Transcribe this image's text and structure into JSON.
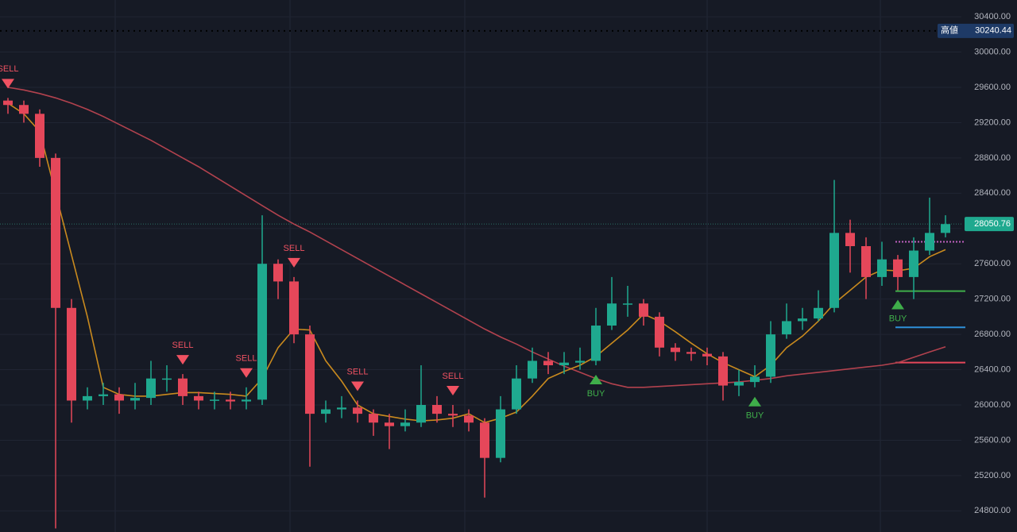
{
  "chart_data": {
    "type": "candlestick",
    "ylim": [
      24560,
      30590
    ],
    "yticks": [
      {
        "value": 30400,
        "label": "30400.00"
      },
      {
        "value": 30000,
        "label": "30000.00"
      },
      {
        "value": 29600,
        "label": "29600.00"
      },
      {
        "value": 29200,
        "label": "29200.00"
      },
      {
        "value": 28800,
        "label": "28800.00"
      },
      {
        "value": 28400,
        "label": "28400.00"
      },
      {
        "value": 28000,
        "label": "28000.00"
      },
      {
        "value": 27600,
        "label": "27600.00"
      },
      {
        "value": 27200,
        "label": "27200.00"
      },
      {
        "value": 26800,
        "label": "26800.00"
      },
      {
        "value": 26400,
        "label": "26400.00"
      },
      {
        "value": 26000,
        "label": "26000.00"
      },
      {
        "value": 25600,
        "label": "25600.00"
      },
      {
        "value": 25200,
        "label": "25200.00"
      },
      {
        "value": 24800,
        "label": "24800.00"
      }
    ],
    "grid": true,
    "up_color": "#1fa98f",
    "down_color": "#e5475a",
    "open": [
      29450,
      29400,
      29300,
      28800,
      27100,
      26050,
      26100,
      26120,
      26050,
      26080,
      26300,
      26300,
      26100,
      26050,
      26060,
      26040,
      26060,
      27600,
      27400,
      26800,
      25900,
      25950,
      25970,
      25900,
      25800,
      25760,
      25800,
      26000,
      25900,
      25880,
      25800,
      25400,
      25950,
      26300,
      26500,
      26450,
      26480,
      26500,
      26900,
      27150,
      27150,
      27000,
      26650,
      26600,
      26580,
      26550,
      26220,
      26260,
      26320,
      26800,
      26950,
      26980,
      27100,
      27950,
      27800,
      27450,
      27650,
      27450,
      27750,
      27950
    ],
    "high": [
      29480,
      29450,
      29350,
      28850,
      27200,
      26200,
      26250,
      26200,
      26250,
      26500,
      26450,
      26350,
      26150,
      26150,
      26150,
      26200,
      28150,
      27650,
      27450,
      26900,
      26050,
      26100,
      26050,
      25950,
      25900,
      25950,
      26450,
      26100,
      26000,
      25950,
      25850,
      26100,
      26450,
      26650,
      26600,
      26600,
      26650,
      27100,
      27450,
      27350,
      27200,
      27050,
      26700,
      26650,
      26650,
      26600,
      26400,
      26450,
      26950,
      27150,
      27100,
      27300,
      28550,
      28100,
      27900,
      27850,
      27700,
      27900,
      28350,
      28150
    ],
    "low": [
      29300,
      29200,
      28700,
      24600,
      25800,
      25950,
      26000,
      25900,
      25950,
      26000,
      26150,
      26000,
      25950,
      25950,
      25950,
      25950,
      26000,
      27200,
      26700,
      25300,
      25800,
      25850,
      25800,
      25650,
      25500,
      25700,
      25750,
      25800,
      25750,
      25700,
      24950,
      25350,
      25900,
      26250,
      26350,
      26350,
      26400,
      26450,
      26850,
      27000,
      26900,
      26550,
      26500,
      26500,
      26450,
      26050,
      26100,
      26200,
      26250,
      26750,
      26850,
      26950,
      27050,
      27500,
      27200,
      27350,
      27300,
      27200,
      27700,
      27900
    ],
    "close": [
      29400,
      29300,
      28800,
      27100,
      26050,
      26100,
      26120,
      26050,
      26080,
      26300,
      26300,
      26100,
      26050,
      26060,
      26040,
      26060,
      27600,
      27400,
      26800,
      25900,
      25950,
      25970,
      25900,
      25800,
      25760,
      25800,
      26000,
      25900,
      25880,
      25800,
      25400,
      25950,
      26300,
      26500,
      26450,
      26480,
      26500,
      26900,
      27150,
      27150,
      27000,
      26650,
      26600,
      26580,
      26550,
      26220,
      26260,
      26320,
      26800,
      26950,
      26980,
      27100,
      27950,
      27800,
      27450,
      27650,
      27450,
      27750,
      27950,
      28050
    ],
    "series": [
      {
        "color": "#b2424e",
        "values": [
          29600,
          29570,
          29530,
          29480,
          29420,
          29350,
          29270,
          29180,
          29090,
          29000,
          28900,
          28800,
          28700,
          28590,
          28480,
          28370,
          28260,
          28150,
          28050,
          27960,
          27860,
          27760,
          27660,
          27560,
          27460,
          27360,
          27260,
          27160,
          27060,
          26960,
          26860,
          26770,
          26690,
          26600,
          26520,
          26440,
          26370,
          26300,
          26240,
          26200,
          26200,
          26210,
          26220,
          26230,
          26240,
          26250,
          26260,
          26280,
          26300,
          26330,
          26350,
          26370,
          26390,
          26410,
          26430,
          26450,
          26480,
          26540,
          26600,
          26660
        ]
      },
      {
        "color": "#c98a1e",
        "values": [
          29420,
          29300,
          29100,
          28400,
          27700,
          27000,
          26200,
          26120,
          26100,
          26100,
          26120,
          26140,
          26140,
          26130,
          26120,
          26100,
          26300,
          26650,
          26860,
          26850,
          26500,
          26270,
          26000,
          25900,
          25870,
          25840,
          25820,
          25830,
          25850,
          25900,
          25800,
          25850,
          25920,
          26100,
          26300,
          26380,
          26450,
          26550,
          26700,
          26850,
          27030,
          26950,
          26830,
          26700,
          26580,
          26480,
          26400,
          26320,
          26450,
          26650,
          26780,
          26950,
          27150,
          27300,
          27450,
          27530,
          27520,
          27550,
          27680,
          27760
        ]
      }
    ],
    "signals": [
      {
        "text": "SELL",
        "candle": 0
      },
      {
        "text": "SELL",
        "candle": 11
      },
      {
        "text": "SELL",
        "candle": 15
      },
      {
        "text": "SELL",
        "candle": 18
      },
      {
        "text": "SELL",
        "candle": 22
      },
      {
        "text": "SELL",
        "candle": 28
      },
      {
        "text": "BUY",
        "candle": 37
      },
      {
        "text": "BUY",
        "candle": 47
      },
      {
        "text": "BUY",
        "candle": 56
      }
    ],
    "levels": [
      {
        "value": 27850,
        "color": "#c060c0"
      },
      {
        "value": 27290,
        "color": "#3fae4a"
      },
      {
        "value": 26880,
        "color": "#2e8fd8"
      },
      {
        "value": 26480,
        "color": "#e5475a"
      }
    ],
    "high_price": {
      "name": "高値",
      "value": 30240.44
    },
    "last_price": 28050.76
  }
}
